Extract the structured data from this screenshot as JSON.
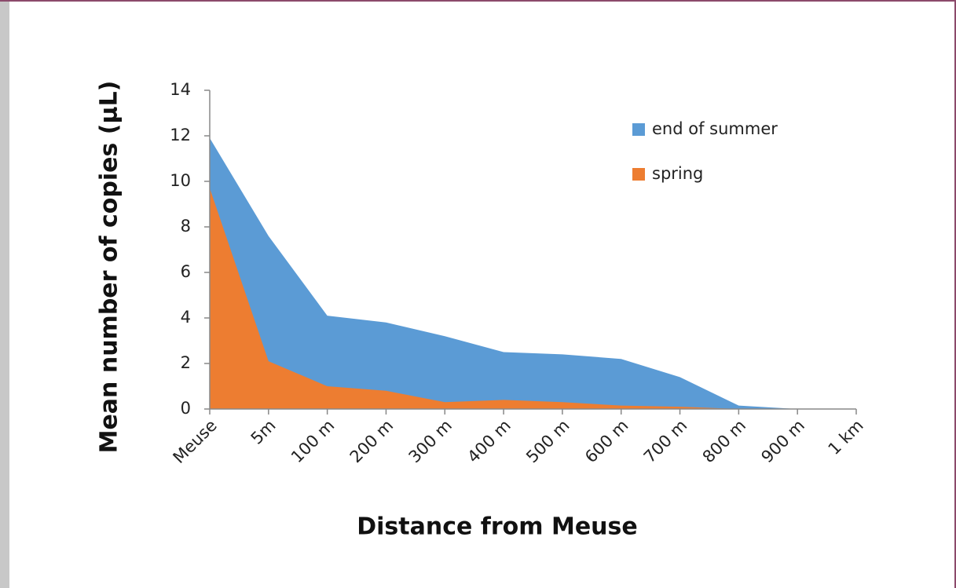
{
  "chart_data": {
    "type": "area",
    "x_label": "Distance from Meuse",
    "y_label": "Mean number of copies (µL)",
    "categories": [
      "Meuse",
      "5m",
      "100 m",
      "200 m",
      "300 m",
      "400 m",
      "500 m",
      "600 m",
      "700 m",
      "800 m",
      "900 m",
      "1 km"
    ],
    "series": [
      {
        "name": "end of summer",
        "color": "#5b9bd5",
        "values": [
          11.9,
          7.6,
          4.1,
          3.8,
          3.2,
          2.5,
          2.4,
          2.2,
          1.4,
          0.15,
          0,
          0
        ]
      },
      {
        "name": "spring",
        "color": "#ed7d31",
        "values": [
          9.7,
          2.1,
          1.0,
          0.8,
          0.3,
          0.4,
          0.3,
          0.15,
          0.1,
          0,
          0,
          0
        ]
      }
    ],
    "ylim": [
      0,
      14
    ],
    "yticks": [
      0,
      2,
      4,
      6,
      8,
      10,
      12,
      14
    ]
  }
}
